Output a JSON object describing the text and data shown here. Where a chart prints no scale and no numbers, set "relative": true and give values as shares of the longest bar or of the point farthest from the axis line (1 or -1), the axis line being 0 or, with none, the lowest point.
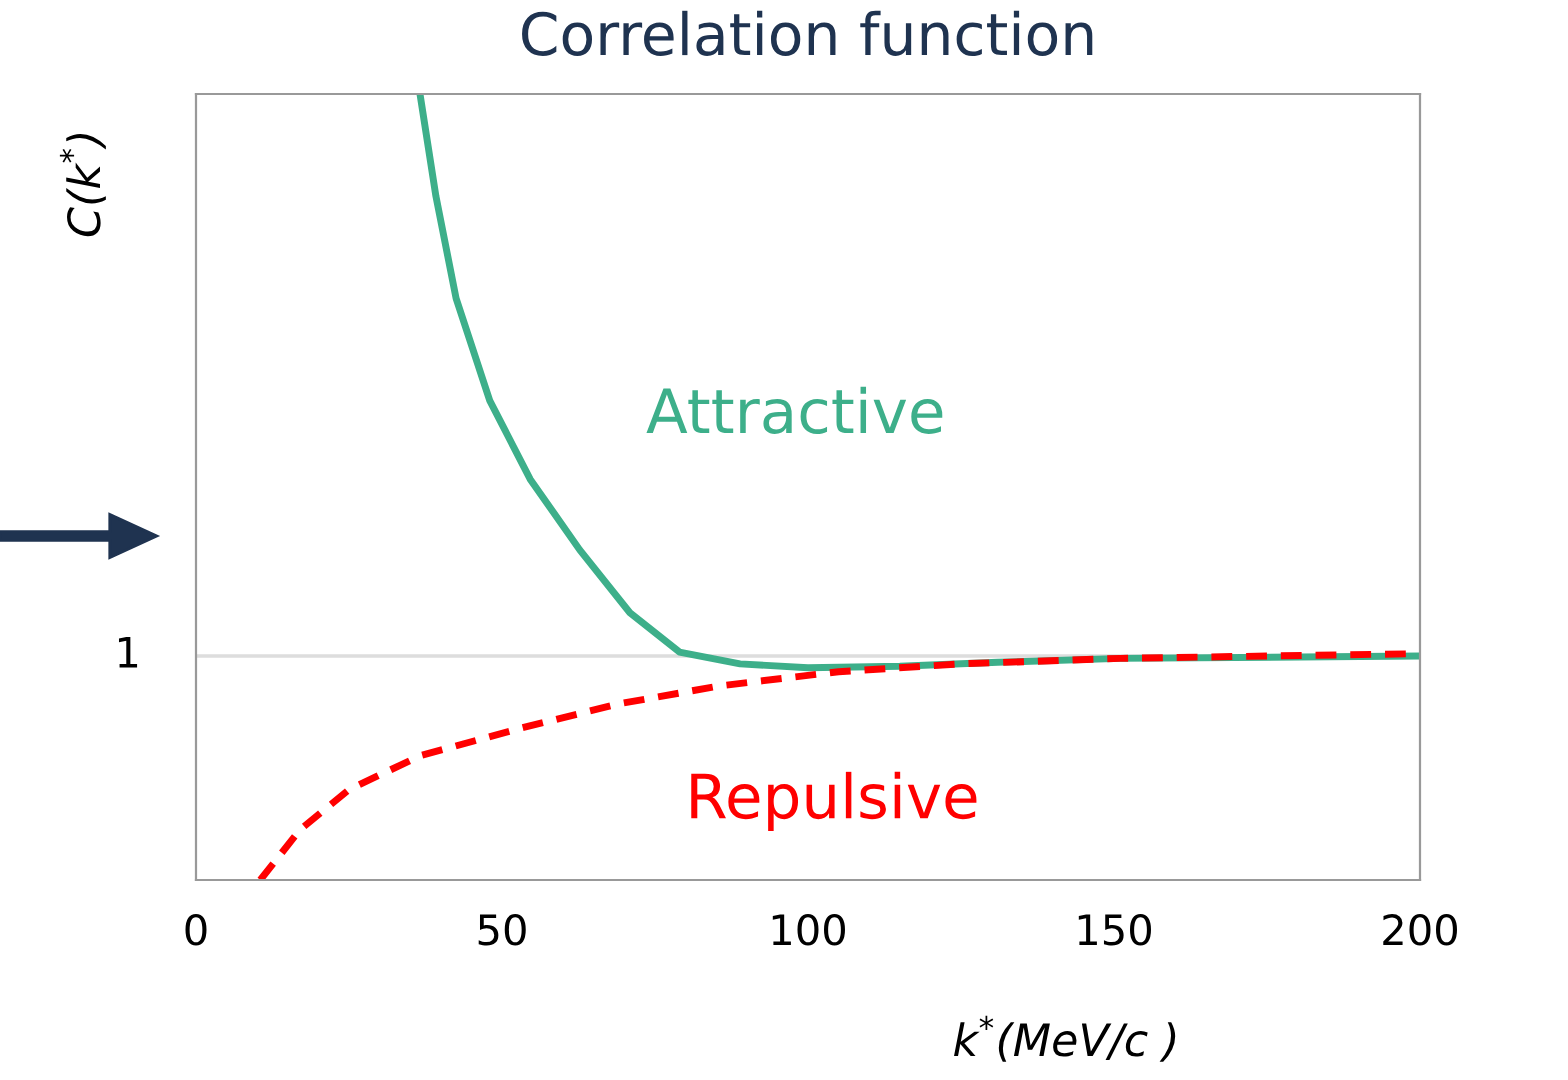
{
  "chart_data": {
    "type": "line",
    "title": "Correlation function",
    "xlabel": "k$^{*}$(MeV/c )",
    "ylabel": "C(k$^{*}$)",
    "relative": true,
    "xlim": [
      0,
      200
    ],
    "xticks": [
      0,
      50,
      100,
      150,
      200
    ],
    "grid": false,
    "legend": false,
    "marker": "none",
    "series": [
      {
        "name": "Attractive",
        "color": "#3daf8a",
        "line_style": "solid",
        "x": [
          36.6,
          39.2,
          42.5,
          48,
          54.6,
          62.7,
          70.9,
          79,
          88.9,
          100,
          115,
          131,
          151,
          200
        ],
        "values": [
          1.0,
          0.87,
          0.74,
          0.61,
          0.51,
          0.42,
          0.34,
          0.29,
          0.275,
          0.27,
          0.272,
          0.277,
          0.282,
          0.285
        ]
      },
      {
        "name": "Repulsive",
        "color": "#ff0000",
        "line_style": "dashed",
        "x": [
          10.5,
          17,
          25,
          36.6,
          53,
          69,
          85.6,
          105,
          125,
          151,
          200
        ],
        "values": [
          0.0,
          0.064,
          0.115,
          0.158,
          0.193,
          0.224,
          0.247,
          0.265,
          0.275,
          0.282,
          0.288
        ]
      }
    ],
    "ref_lines": [
      {
        "axis": "y",
        "value": 0.285,
        "color": "#dddddd"
      }
    ],
    "annotations": [
      "1"
    ]
  }
}
